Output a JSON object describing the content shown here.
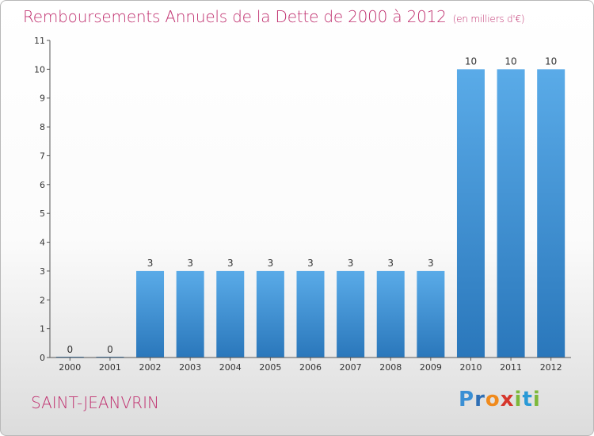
{
  "title": "Remboursements Annuels de la Dette de 2000 à 2012",
  "unit": "(en milliers d'€)",
  "commune": "SAINT-JEANVRIN",
  "logo": {
    "letters": [
      "P",
      "r",
      "o",
      "x",
      "i",
      "t",
      "i"
    ],
    "colors": [
      "#3a8fd4",
      "#2f6fb5",
      "#f08a1c",
      "#d6362c",
      "#7db83a",
      "#2a9ad6",
      "#7db83a"
    ]
  },
  "colors": {
    "bar_top": "#5aabe8",
    "bar_bottom": "#2a77bb",
    "accent": "#c0306f"
  },
  "chart_data": {
    "type": "bar",
    "categories": [
      "2000",
      "2001",
      "2002",
      "2003",
      "2004",
      "2005",
      "2006",
      "2007",
      "2008",
      "2009",
      "2010",
      "2011",
      "2012"
    ],
    "values": [
      0,
      0,
      3,
      3,
      3,
      3,
      3,
      3,
      3,
      3,
      10,
      10,
      10
    ],
    "data_labels": [
      "0",
      "0",
      "3",
      "3",
      "3",
      "3",
      "3",
      "3",
      "3",
      "3",
      "10",
      "10",
      "10"
    ],
    "yticks": [
      0,
      1,
      2,
      3,
      4,
      5,
      6,
      7,
      8,
      9,
      10,
      11
    ],
    "ylim": [
      0,
      11
    ],
    "grid": false,
    "legend": "none"
  }
}
